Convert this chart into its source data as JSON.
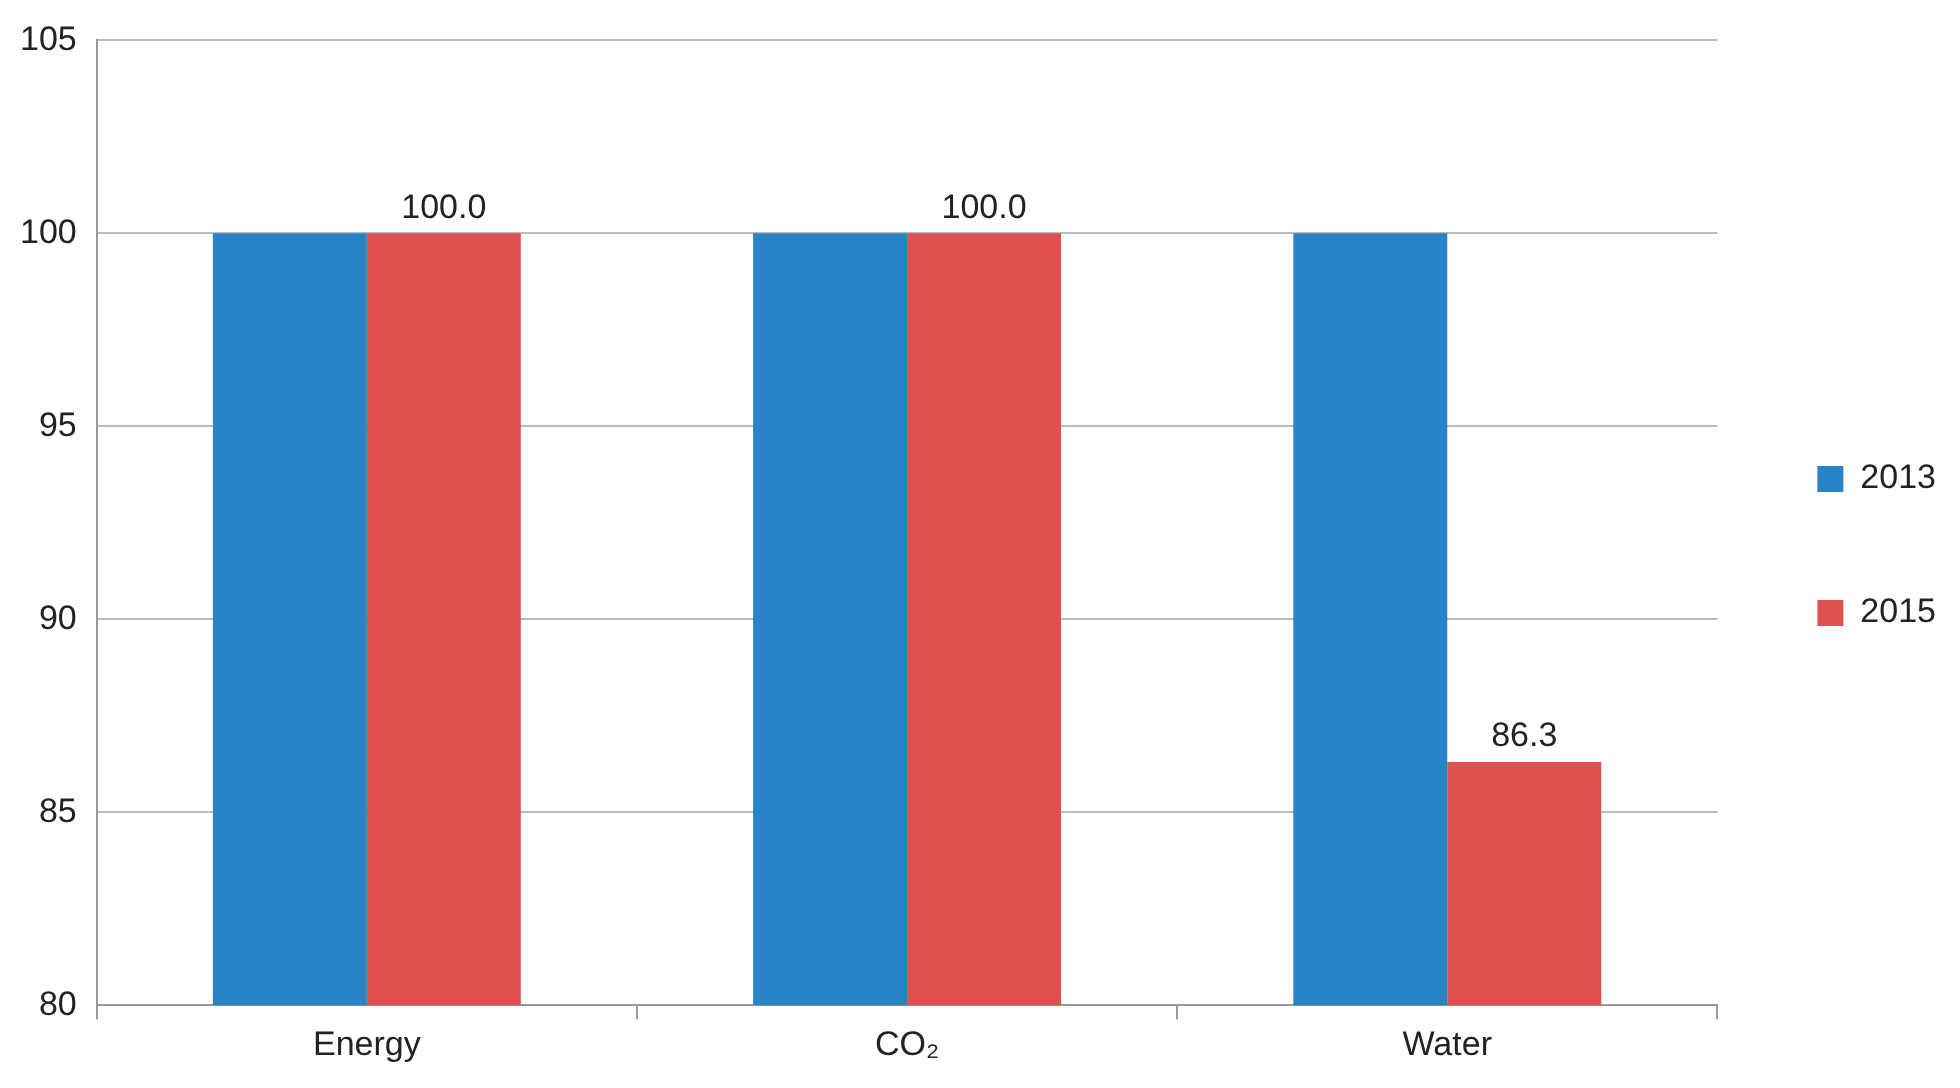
{
  "chart_data": {
    "type": "bar",
    "categories": [
      "Energy",
      "CO₂",
      "Water"
    ],
    "series": [
      {
        "name": "2013",
        "color": "#2884c6",
        "values": [
          100,
          100,
          100
        ]
      },
      {
        "name": "2015",
        "color": "#e0504e",
        "values": [
          100,
          100,
          86.3
        ],
        "value_labels": [
          "100.0",
          "100.0",
          "86.3"
        ]
      }
    ],
    "ylim": [
      80,
      105
    ],
    "yticks": [
      80,
      85,
      90,
      95,
      100,
      105
    ],
    "grid": "y",
    "legend": "right"
  }
}
